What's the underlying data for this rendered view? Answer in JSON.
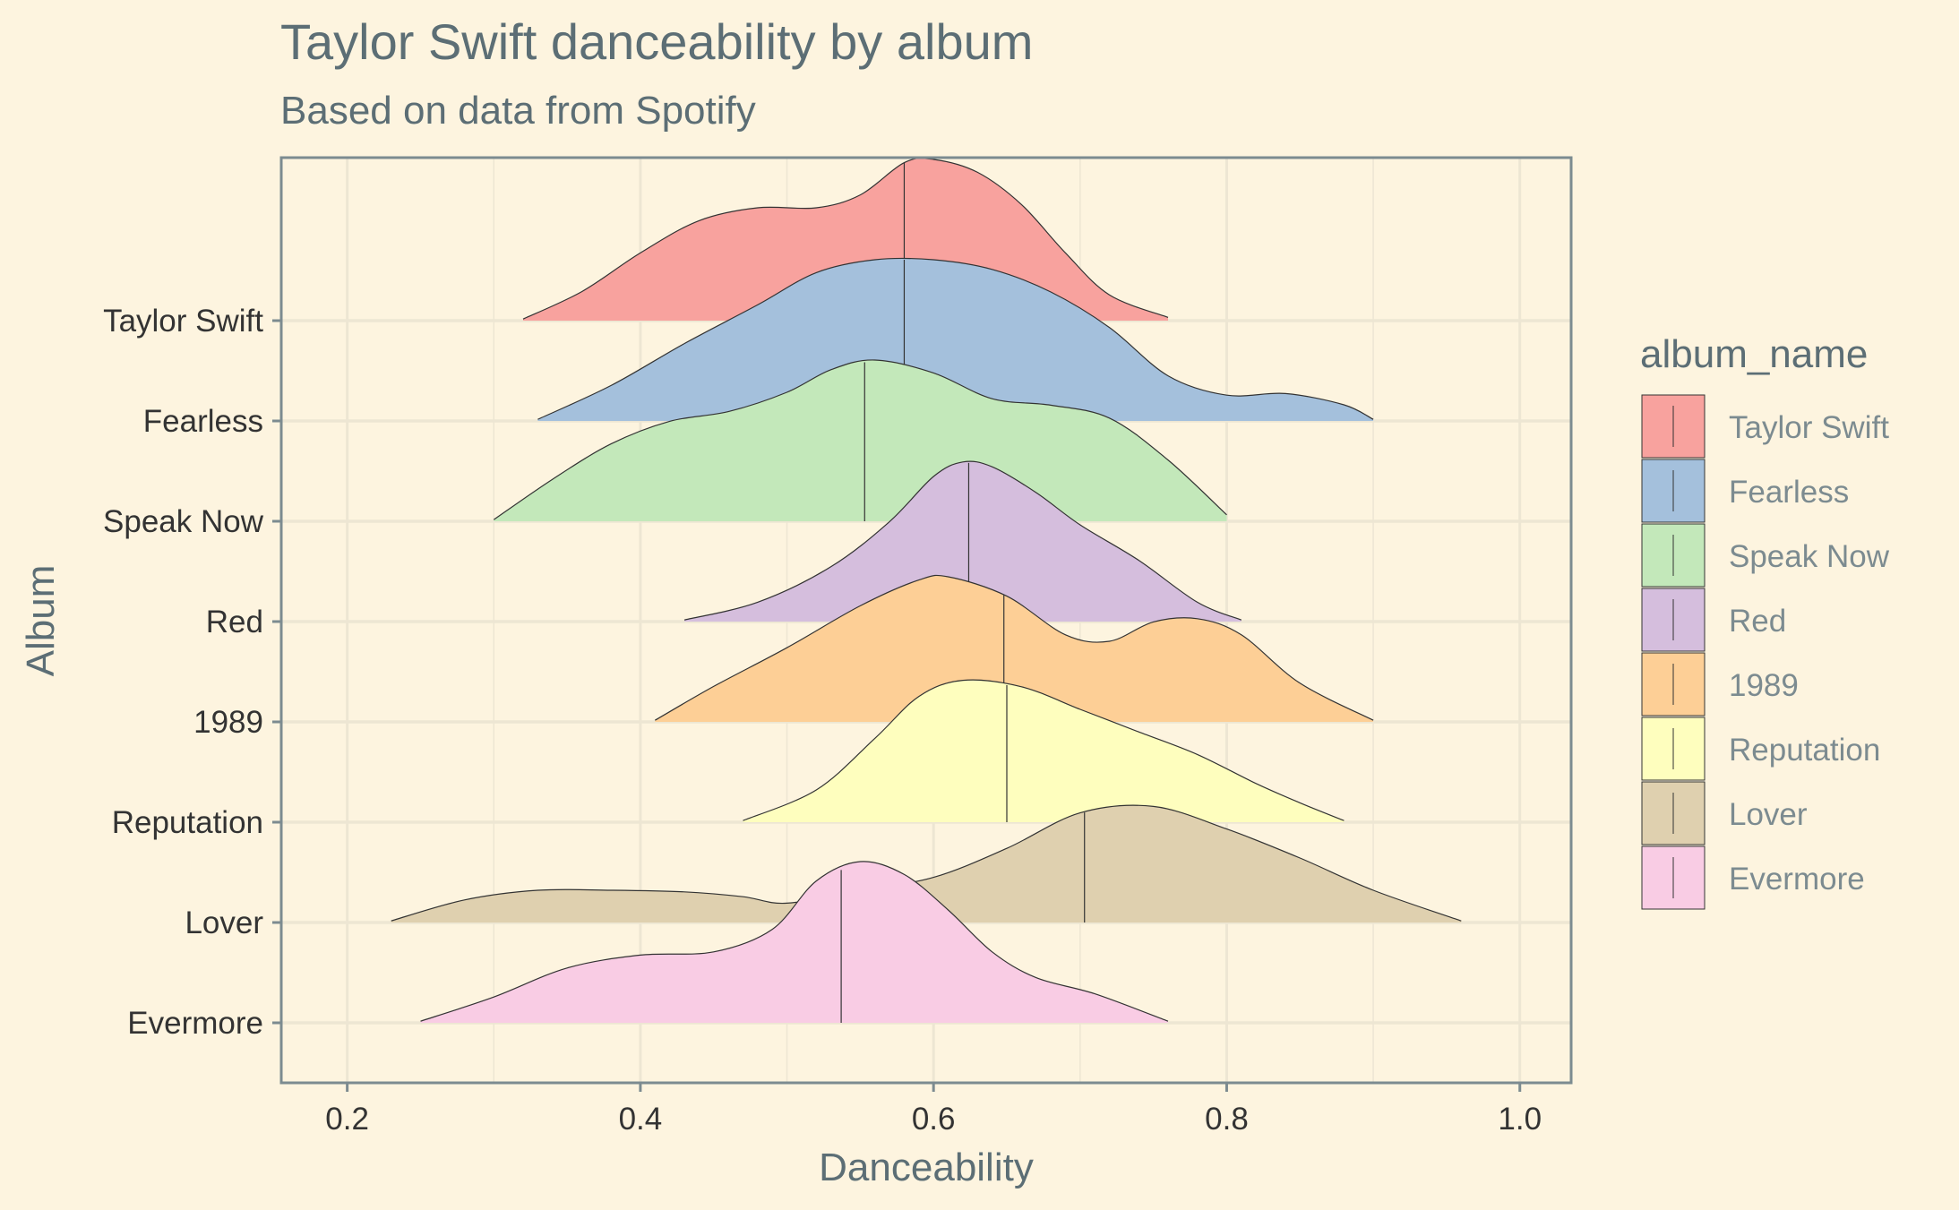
{
  "chart_data": {
    "type": "ridgeline",
    "title": "Taylor Swift danceability by album",
    "subtitle": "Based on data from Spotify",
    "xlabel": "Danceability",
    "ylabel": "Album",
    "xlim": [
      0.155,
      1.035
    ],
    "x_ticks": [
      0.2,
      0.4,
      0.6,
      0.8,
      1.0
    ],
    "x_tick_labels": [
      "0.2",
      "0.4",
      "0.6",
      "0.8",
      "1.0"
    ],
    "grid": true,
    "legend": {
      "title": "album_name",
      "placement": "right"
    },
    "colors": {
      "background": "#FDF4DF",
      "grid": "#EDE6D3",
      "axis": "#7C8B90",
      "text": "#5C6E75"
    },
    "series": [
      {
        "name": "Taylor Swift",
        "color": "#F8A29E",
        "median": 0.58,
        "density": [
          [
            0.32,
            0.01
          ],
          [
            0.36,
            0.18
          ],
          [
            0.4,
            0.42
          ],
          [
            0.44,
            0.62
          ],
          [
            0.48,
            0.7
          ],
          [
            0.52,
            0.7
          ],
          [
            0.55,
            0.78
          ],
          [
            0.58,
            0.98
          ],
          [
            0.6,
            1.0
          ],
          [
            0.63,
            0.92
          ],
          [
            0.66,
            0.72
          ],
          [
            0.69,
            0.42
          ],
          [
            0.72,
            0.16
          ],
          [
            0.76,
            0.02
          ]
        ]
      },
      {
        "name": "Fearless",
        "color": "#A4C0DC",
        "median": 0.58,
        "density": [
          [
            0.33,
            0.01
          ],
          [
            0.38,
            0.22
          ],
          [
            0.43,
            0.48
          ],
          [
            0.48,
            0.72
          ],
          [
            0.52,
            0.92
          ],
          [
            0.56,
            1.0
          ],
          [
            0.6,
            1.0
          ],
          [
            0.64,
            0.94
          ],
          [
            0.68,
            0.8
          ],
          [
            0.72,
            0.58
          ],
          [
            0.76,
            0.28
          ],
          [
            0.8,
            0.16
          ],
          [
            0.84,
            0.17
          ],
          [
            0.88,
            0.1
          ],
          [
            0.9,
            0.01
          ]
        ]
      },
      {
        "name": "Speak Now",
        "color": "#C3E8BA",
        "median": 0.553,
        "density": [
          [
            0.3,
            0.01
          ],
          [
            0.34,
            0.26
          ],
          [
            0.38,
            0.48
          ],
          [
            0.42,
            0.62
          ],
          [
            0.46,
            0.68
          ],
          [
            0.5,
            0.8
          ],
          [
            0.53,
            0.94
          ],
          [
            0.56,
            1.0
          ],
          [
            0.6,
            0.92
          ],
          [
            0.64,
            0.76
          ],
          [
            0.68,
            0.72
          ],
          [
            0.72,
            0.64
          ],
          [
            0.76,
            0.38
          ],
          [
            0.8,
            0.04
          ]
        ]
      },
      {
        "name": "Red",
        "color": "#D5BEDD",
        "median": 0.624,
        "density": [
          [
            0.43,
            0.01
          ],
          [
            0.48,
            0.12
          ],
          [
            0.53,
            0.34
          ],
          [
            0.57,
            0.62
          ],
          [
            0.6,
            0.9
          ],
          [
            0.62,
            0.99
          ],
          [
            0.64,
            0.96
          ],
          [
            0.67,
            0.8
          ],
          [
            0.7,
            0.6
          ],
          [
            0.74,
            0.38
          ],
          [
            0.78,
            0.12
          ],
          [
            0.81,
            0.01
          ]
        ]
      },
      {
        "name": "1989",
        "color": "#FDCF96",
        "median": 0.648,
        "density": [
          [
            0.41,
            0.01
          ],
          [
            0.45,
            0.22
          ],
          [
            0.5,
            0.46
          ],
          [
            0.55,
            0.72
          ],
          [
            0.59,
            0.88
          ],
          [
            0.61,
            0.9
          ],
          [
            0.65,
            0.78
          ],
          [
            0.69,
            0.54
          ],
          [
            0.72,
            0.5
          ],
          [
            0.75,
            0.62
          ],
          [
            0.78,
            0.64
          ],
          [
            0.81,
            0.54
          ],
          [
            0.85,
            0.24
          ],
          [
            0.9,
            0.01
          ]
        ]
      },
      {
        "name": "Reputation",
        "color": "#FEFEBE",
        "median": 0.65,
        "density": [
          [
            0.47,
            0.01
          ],
          [
            0.52,
            0.2
          ],
          [
            0.56,
            0.52
          ],
          [
            0.59,
            0.78
          ],
          [
            0.62,
            0.88
          ],
          [
            0.66,
            0.84
          ],
          [
            0.7,
            0.7
          ],
          [
            0.74,
            0.56
          ],
          [
            0.78,
            0.42
          ],
          [
            0.82,
            0.24
          ],
          [
            0.85,
            0.12
          ],
          [
            0.88,
            0.01
          ]
        ]
      },
      {
        "name": "Lover",
        "color": "#DFD0AF",
        "median": 0.703,
        "density": [
          [
            0.23,
            0.01
          ],
          [
            0.28,
            0.14
          ],
          [
            0.33,
            0.2
          ],
          [
            0.38,
            0.2
          ],
          [
            0.43,
            0.19
          ],
          [
            0.47,
            0.16
          ],
          [
            0.5,
            0.12
          ],
          [
            0.55,
            0.2
          ],
          [
            0.6,
            0.28
          ],
          [
            0.65,
            0.46
          ],
          [
            0.7,
            0.68
          ],
          [
            0.75,
            0.72
          ],
          [
            0.8,
            0.58
          ],
          [
            0.85,
            0.4
          ],
          [
            0.9,
            0.2
          ],
          [
            0.96,
            0.01
          ]
        ]
      },
      {
        "name": "Evermore",
        "color": "#F9CCE4",
        "median": 0.537,
        "density": [
          [
            0.25,
            0.01
          ],
          [
            0.3,
            0.16
          ],
          [
            0.35,
            0.34
          ],
          [
            0.4,
            0.42
          ],
          [
            0.45,
            0.44
          ],
          [
            0.49,
            0.58
          ],
          [
            0.52,
            0.88
          ],
          [
            0.55,
            1.0
          ],
          [
            0.58,
            0.92
          ],
          [
            0.61,
            0.7
          ],
          [
            0.64,
            0.44
          ],
          [
            0.67,
            0.28
          ],
          [
            0.71,
            0.18
          ],
          [
            0.76,
            0.01
          ]
        ]
      }
    ]
  }
}
